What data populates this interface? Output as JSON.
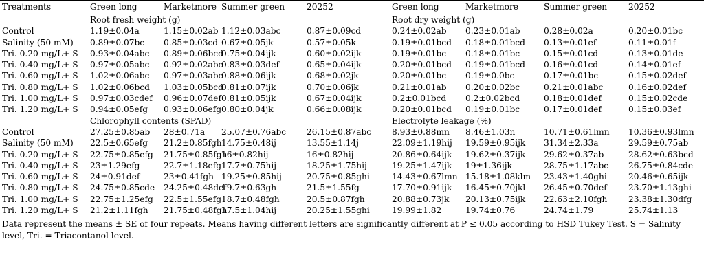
{
  "header": [
    "Treatments",
    "Green long",
    "Marketmore",
    "Summer green",
    "20252",
    "Green long",
    "Marketmore",
    "Summer green",
    "20252"
  ],
  "sections": [
    {
      "left_title": "Root fresh weight (g)",
      "right_title": "Root dry weight (g)",
      "rows": [
        [
          "Control",
          "1.19±0.04a",
          "1.15±0.02ab",
          "1.12±0.03abc",
          "0.87±0.09cd",
          "0.24±0.02ab",
          "0.23±0.01ab",
          "0.28±0.02a",
          "0.20±0.01bc"
        ],
        [
          "Salinity (50 mM)",
          "0.89±0.07bc",
          "0.85±0.03cd",
          "0.67±0.05jk",
          "0.57±0.05k",
          "0.19±0.01bcd",
          "0.18±0.01bcd",
          "0.13±0.01ef",
          "0.11±0.01f"
        ],
        [
          "Tri. 0.20 mg/L+ S",
          "0.93±0.04abc",
          "0.89±0.06bcd",
          "0.75±0.04ijk",
          "0.60±0.02ijk",
          "0.19±0.01bc",
          "0.18±0.01bc",
          "0.15±0.01cd",
          "0.13±0.01de"
        ],
        [
          "Tri. 0.40 mg/L+ S",
          "0.97±0.05abc",
          "0.92±0.02abc",
          "0.83±0.03def",
          "0.65±0.04ijk",
          "0.20±0.01bcd",
          "0.19±0.01bcd",
          "0.16±0.01cd",
          "0.14±0.01ef"
        ],
        [
          "Tri. 0.60 mg/L+ S",
          "1.02±0.06abc",
          "0.97±0.03abc",
          "0.88±0.06ijk",
          "0.68±0.02jk",
          "0.20±0.01bc",
          "0.19±0.0bc",
          "0.17±0.01bc",
          "0.15±0.02def"
        ],
        [
          "Tri. 0.80 mg/L+ S",
          "1.02±0.06bcd",
          "1.03±0.05bcd",
          "0.81±0.07ijk",
          "0.70±0.06jk",
          "0.21±0.01ab",
          "0.20±0.02bc",
          "0.21±0.01abc",
          "0.16±0.02def"
        ],
        [
          "Tri. 1.00 mg/L+ S",
          "0.97±0.03cdef",
          "0.96±0.07def",
          "0.81±0.05ijk",
          "0.67±0.04ijk",
          "0.2±0.01bcd",
          "0.2±0.02bcd",
          "0.18±0.01def",
          "0.15±0.02cde"
        ],
        [
          "Tri. 1.20 mg/L+ S",
          "0.94±0.05efg",
          "0.93±0.06efg",
          "0.80±0.04jk",
          "0.66±0.08ijk",
          "0.20±0.01bcd",
          "0.19±0.01bc",
          "0.17±0.01def",
          "0.15±0.03ef"
        ]
      ]
    },
    {
      "left_title": "Chlorophyll contents (SPAD)",
      "right_title": "Electrolyte leakage (%)",
      "rows": [
        [
          "Control",
          "27.25±0.85ab",
          "28±0.71a",
          "25.07±0.76abc",
          "26.15±0.87abc",
          "8.93±0.88mn",
          "8.46±1.03n",
          "10.71±0.61lmn",
          "10.36±0.93lmn"
        ],
        [
          "Salinity (50 mM)",
          "22.5±0.65efg",
          "21.2±0.85fgh",
          "14.75±0.48ij",
          "13.55±1.14j",
          "22.09±1.19hij",
          "19.59±0.95ijk",
          "31.34±2.33a",
          "29.59±0.75ab"
        ],
        [
          "Tri. 0.20 mg/L+ S",
          "22.75±0.85efg",
          "21.75±0.85fgh",
          "16±0.82hij",
          "16±0.82hij",
          "20.86±0.64ijk",
          "19.62±0.37ijk",
          "29.62±0.37ab",
          "28.62±0.63bcd"
        ],
        [
          "Tri. 0.40 mg/L+ S",
          "23±1.29efg",
          "22.7±1.18efg",
          "17.7±0.75hij",
          "18.25±1.75hij",
          "19.25±1.47ijk",
          "19±1.36ijk",
          "28.75±1.17abc",
          "26.75±0.84cde"
        ],
        [
          "Tri. 0.60 mg/L+ S",
          "24±0.91def",
          "23±0.41fgh",
          "19.25±0.85hij",
          "20.75±0.85ghi",
          "14.43±0.67lmn",
          "15.18±1.08klm",
          "23.43±1.40ghi",
          "20.46±0.65ijk"
        ],
        [
          "Tri. 0.80 mg/L+ S",
          "24.75±0.85cde",
          "24.25±0.48def",
          "19.7±0.63gh",
          "21.5±1.55fg",
          "17.70±0.91ijk",
          "16.45±0.70jkl",
          "26.45±0.70def",
          "23.70±1.13ghi"
        ],
        [
          "Tri. 1.00 mg/L+ S",
          "22.75±1.25efg",
          "22.5±1.55efg",
          "18.7±0.48fgh",
          "20.5±0.87fgh",
          "20.88±0.73jk",
          "20.13±0.75ijk",
          "22.63±2.10fgh",
          "23.38±1.30dfg"
        ],
        [
          "Tri. 1.20 mg/L+ S",
          "21.2±1.11fgh",
          "21.75±0.48fgh",
          "17.5±1.04hij",
          "20.25±1.55ghi",
          "19.99±1.82",
          "19.74±0.76",
          "24.74±1.79",
          "25.74±1.13"
        ]
      ]
    }
  ],
  "footnote": "Data represent the means ± SE of four repeats. Means having different letters are significantly different at P ≤ 0.05 according to HSD Tukey Test. S = Salinity level, Tri. = Triacontanol level."
}
